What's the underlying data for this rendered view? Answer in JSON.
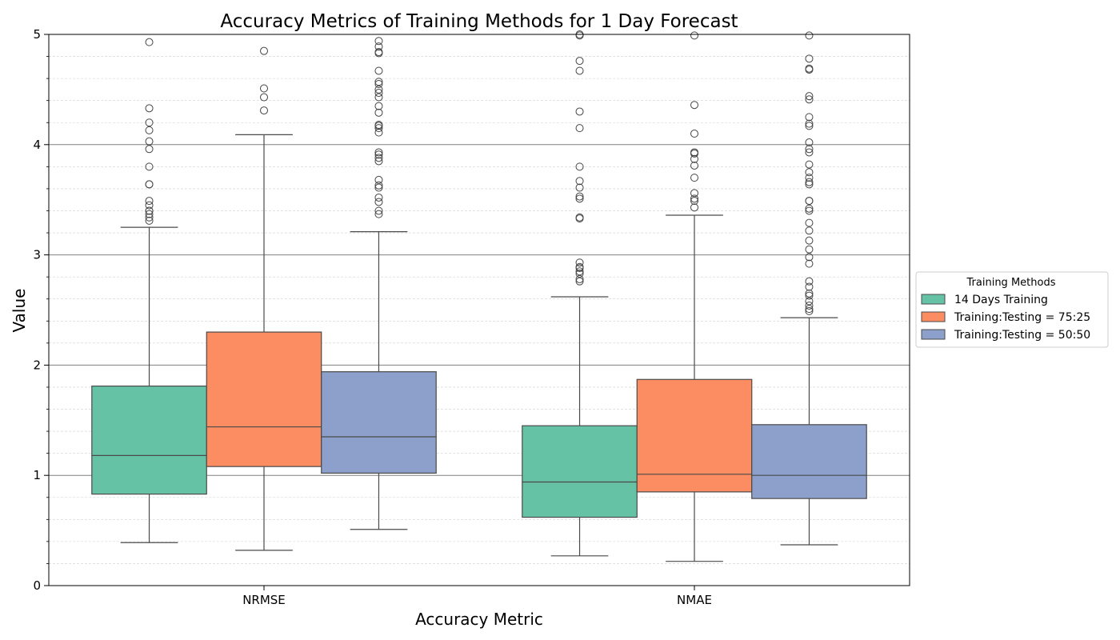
{
  "chart_data": {
    "type": "box",
    "title": "Accuracy Metrics of Training Methods for 1 Day Forecast",
    "xlabel": "Accuracy Metric",
    "ylabel": "Value",
    "ylim": [
      0,
      5
    ],
    "yticks": [
      0,
      1,
      2,
      3,
      4,
      5
    ],
    "categories": [
      "NRMSE",
      "NMAE"
    ],
    "grid": {
      "major": true,
      "minor": true
    },
    "legend": {
      "title": "Training Methods",
      "placement": "outside-right"
    },
    "series": [
      {
        "name": "14 Days Training",
        "color": "#66c2a5",
        "boxes": [
          {
            "whisker_low": 0.39,
            "q1": 0.83,
            "median": 1.18,
            "q3": 1.81,
            "whisker_high": 3.25,
            "outliers": [
              3.31,
              3.34,
              3.37,
              3.4,
              3.4,
              3.45,
              3.49,
              3.64,
              3.64,
              3.8,
              3.96,
              4.03,
              4.13,
              4.2,
              4.33,
              4.93
            ]
          },
          {
            "whisker_low": 0.27,
            "q1": 0.62,
            "median": 0.94,
            "q3": 1.45,
            "whisker_high": 2.62,
            "outliers": [
              2.76,
              2.78,
              2.83,
              2.85,
              2.88,
              2.89,
              2.93,
              3.33,
              3.34,
              3.51,
              3.53,
              3.61,
              3.67,
              3.8,
              4.15,
              4.3,
              4.67,
              4.76,
              4.99,
              5.0
            ]
          }
        ]
      },
      {
        "name": "Training:Testing = 75:25",
        "color": "#fc8d62",
        "boxes": [
          {
            "whisker_low": 0.32,
            "q1": 1.08,
            "median": 1.44,
            "q3": 2.3,
            "whisker_high": 4.09,
            "outliers": [
              4.31,
              4.43,
              4.51,
              4.85
            ]
          },
          {
            "whisker_low": 0.22,
            "q1": 0.85,
            "median": 1.01,
            "q3": 1.87,
            "whisker_high": 3.36,
            "outliers": [
              3.43,
              3.49,
              3.51,
              3.56,
              3.7,
              3.81,
              3.87,
              3.92,
              3.93,
              4.1,
              4.36,
              4.99
            ]
          }
        ]
      },
      {
        "name": "Training:Testing = 50:50",
        "color": "#8da0cb",
        "boxes": [
          {
            "whisker_low": 0.51,
            "q1": 1.02,
            "median": 1.35,
            "q3": 1.94,
            "whisker_high": 3.21,
            "outliers": [
              3.37,
              3.4,
              3.48,
              3.52,
              3.61,
              3.63,
              3.68,
              3.85,
              3.88,
              3.91,
              3.93,
              4.11,
              4.15,
              4.17,
              4.18,
              4.29,
              4.35,
              4.43,
              4.47,
              4.5,
              4.55,
              4.57,
              4.67,
              4.83,
              4.84,
              4.89,
              4.94
            ]
          },
          {
            "whisker_low": 0.37,
            "q1": 0.79,
            "median": 1.0,
            "q3": 1.46,
            "whisker_high": 2.43,
            "outliers": [
              2.49,
              2.51,
              2.54,
              2.58,
              2.63,
              2.65,
              2.71,
              2.76,
              2.92,
              2.98,
              3.05,
              3.13,
              3.22,
              3.29,
              3.4,
              3.42,
              3.49,
              3.49,
              3.64,
              3.66,
              3.7,
              3.75,
              3.82,
              3.93,
              3.96,
              4.02,
              4.17,
              4.19,
              4.25,
              4.41,
              4.44,
              4.68,
              4.69,
              4.78,
              4.99
            ]
          }
        ]
      }
    ]
  }
}
